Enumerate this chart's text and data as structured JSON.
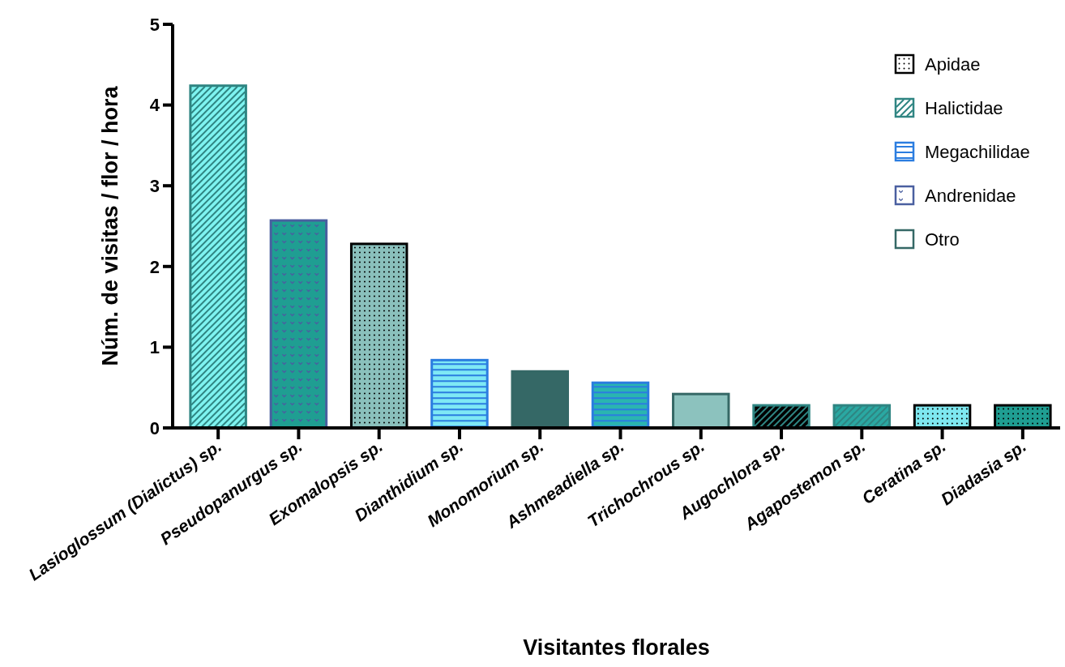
{
  "chart_data": {
    "type": "bar",
    "stacked": true,
    "xlabel": "Visitantes florales",
    "ylabel": "Núm. de visitas / flor / hora",
    "categories": [
      "Lasioglossum (Dialictus) sp.",
      "Pseudopanurgus sp.",
      "Exomalopsis sp.",
      "Dianthidium sp.",
      "Monomorium sp.",
      "Ashmeadiella sp.",
      "Trichochrous sp.",
      "Augochlora sp.",
      "Agapostemon sp.",
      "Ceratina sp.",
      "Diadasia sp."
    ],
    "series": [
      {
        "name": "Apidae",
        "color": "#000000",
        "values": [
          null,
          null,
          2.28,
          null,
          null,
          null,
          null,
          null,
          null,
          0.28,
          0.28
        ],
        "colors": [
          null,
          null,
          "#8ac0bc",
          null,
          null,
          null,
          null,
          null,
          null,
          "#7ee8f0",
          "#1f9e92"
        ]
      },
      {
        "name": "Halictidae",
        "color": "#2f8582",
        "values": [
          4.24,
          null,
          null,
          null,
          null,
          null,
          null,
          0.28,
          0.28,
          null,
          null
        ],
        "colors": [
          "#7ef3f0",
          null,
          null,
          null,
          null,
          null,
          null,
          "#000000",
          "#2aa8a2",
          null,
          null
        ]
      },
      {
        "name": "Megachilidae",
        "color": "#2b7de0",
        "values": [
          null,
          null,
          null,
          0.84,
          null,
          0.56,
          null,
          null,
          null,
          null,
          null
        ],
        "colors": [
          null,
          null,
          null,
          "#7ee8f5",
          null,
          "#2ab5b0",
          null,
          null,
          null,
          null,
          null
        ]
      },
      {
        "name": "Andrenidae",
        "color": "#4a5fa0",
        "values": [
          null,
          2.57,
          null,
          null,
          null,
          null,
          null,
          null,
          null,
          null,
          null
        ],
        "colors": [
          null,
          "#1f9e92",
          null,
          null,
          null,
          null,
          null,
          null,
          null,
          null,
          null
        ]
      },
      {
        "name": "Otro",
        "color": "#356866",
        "values": [
          null,
          null,
          null,
          null,
          0.7,
          null,
          0.42,
          null,
          null,
          null,
          null
        ],
        "colors": [
          null,
          null,
          null,
          null,
          "#356866",
          null,
          "#8cc2be",
          null,
          null,
          null,
          null
        ]
      }
    ],
    "ylim": [
      0,
      5
    ],
    "yticks": [
      0,
      1,
      2,
      3,
      4,
      5
    ],
    "grid": false,
    "legend": "top right"
  }
}
